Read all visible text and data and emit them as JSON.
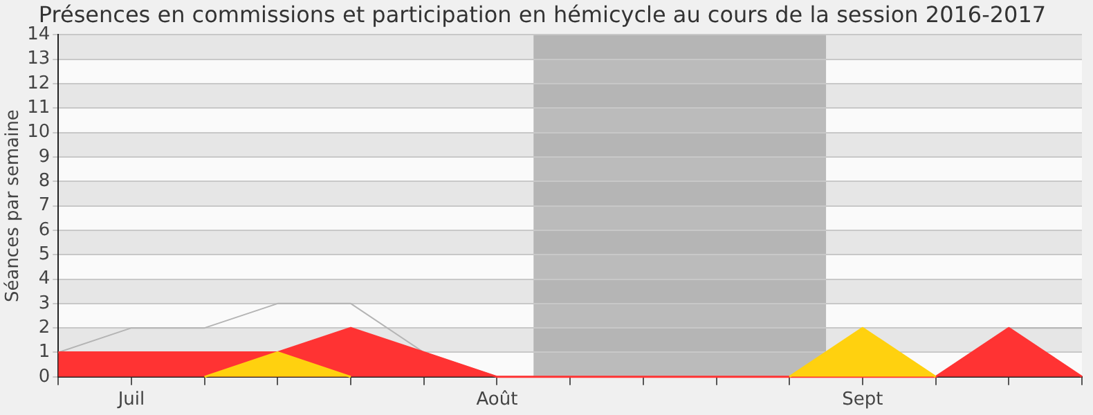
{
  "chart_data": {
    "type": "area",
    "title": "Présences en commissions et participation en hémicycle au cours de la session 2016-2017",
    "ylabel": "Séances par semaine",
    "categories": [
      null,
      "Juil",
      null,
      null,
      null,
      null,
      "Août",
      null,
      null,
      null,
      null,
      "Sept",
      null,
      null,
      null
    ],
    "series": [
      {
        "type": "line",
        "color": "#b4b4b4",
        "values": [
          1,
          2,
          2,
          3,
          3,
          1,
          0,
          0,
          0,
          0,
          0,
          null,
          0,
          2,
          2
        ]
      },
      {
        "color": "#ff3333",
        "values": [
          1,
          1,
          1,
          1,
          2,
          1,
          0,
          0,
          0,
          0,
          0,
          0,
          0,
          2,
          0
        ]
      },
      {
        "color": "#ffd10f",
        "values": [
          null,
          null,
          0,
          1,
          0,
          null,
          null,
          null,
          null,
          null,
          0,
          2,
          0,
          null,
          null
        ]
      }
    ],
    "ylim": [
      0,
      14
    ],
    "yticks": [
      0,
      1,
      2,
      3,
      4,
      5,
      6,
      7,
      8,
      9,
      10,
      11,
      12,
      13,
      14
    ],
    "grid": "y",
    "legend": false
  }
}
